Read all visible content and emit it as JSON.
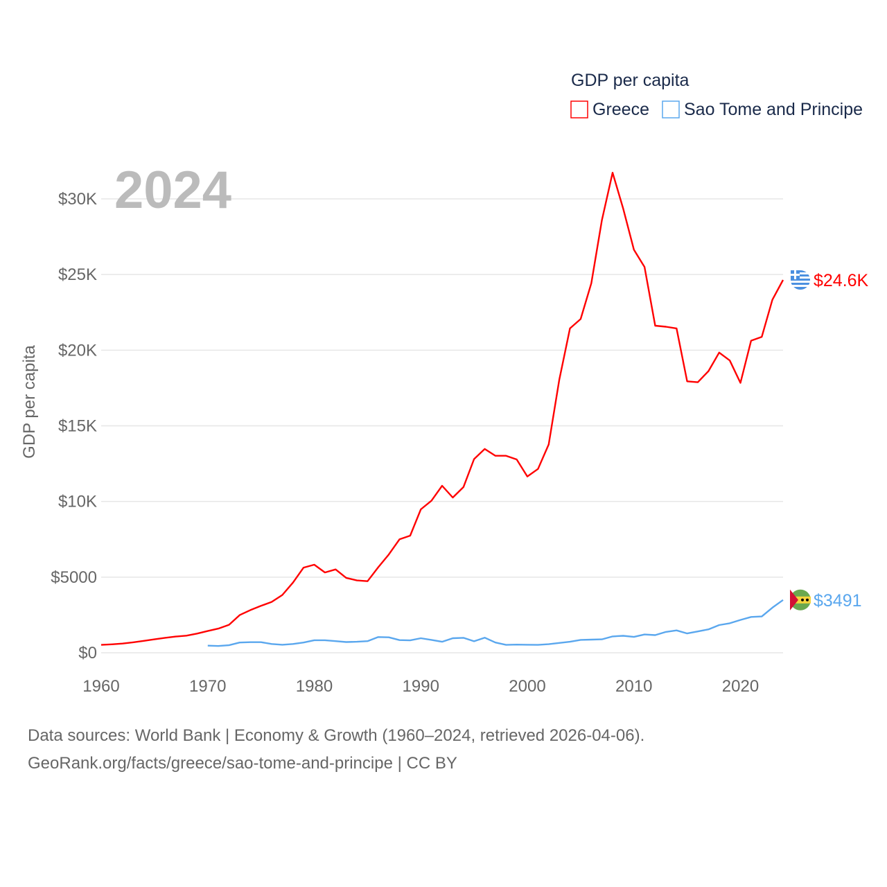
{
  "chart_data": {
    "type": "line",
    "title": "GDP per capita",
    "ylabel": "GDP per capita",
    "xlabel": "",
    "year_label": "2024",
    "xlim": [
      1960,
      2024
    ],
    "ylim": [
      0,
      30000
    ],
    "x_ticks": [
      1960,
      1970,
      1980,
      1990,
      2000,
      2010,
      2020
    ],
    "y_ticks": [
      0,
      5000,
      10000,
      15000,
      20000,
      25000,
      30000
    ],
    "y_tick_labels": [
      "$0",
      "$5000",
      "$10K",
      "$15K",
      "$20K",
      "$25K",
      "$30K"
    ],
    "grid": true,
    "legend_position": "top-right",
    "series": [
      {
        "name": "Greece",
        "color": "#ff0000",
        "end_label": "$24.6K",
        "flag": "greece-flag",
        "start_year": 1960,
        "values": [
          520,
          560,
          610,
          690,
          790,
          890,
          990,
          1070,
          1130,
          1270,
          1440,
          1600,
          1850,
          2490,
          2820,
          3100,
          3360,
          3820,
          4640,
          5630,
          5820,
          5310,
          5510,
          4950,
          4780,
          4730,
          5650,
          6500,
          7500,
          7740,
          9480,
          10050,
          11040,
          10260,
          10950,
          12800,
          13470,
          13020,
          13020,
          12780,
          11650,
          12150,
          13770,
          18050,
          21440,
          22060,
          24420,
          28600,
          31730,
          29340,
          26640,
          25500,
          21620,
          21550,
          21440,
          17940,
          17880,
          18620,
          19840,
          19320,
          17840,
          20630,
          20880,
          23330,
          24640
        ]
      },
      {
        "name": "Sao Tome and Principe",
        "color": "#5aa7ee",
        "end_label": "$3491",
        "flag": "sao-tome-flag",
        "start_year": 1970,
        "values": [
          470,
          450,
          500,
          680,
          700,
          700,
          580,
          530,
          580,
          680,
          830,
          830,
          770,
          710,
          730,
          770,
          1040,
          1020,
          840,
          820,
          960,
          850,
          730,
          960,
          990,
          760,
          1000,
          680,
          520,
          540,
          530,
          520,
          570,
          650,
          730,
          850,
          870,
          890,
          1080,
          1120,
          1050,
          1210,
          1170,
          1380,
          1480,
          1280,
          1410,
          1550,
          1830,
          1950,
          2170,
          2370,
          2400,
          2980,
          3491
        ]
      }
    ]
  },
  "footer": {
    "line1": "Data sources: World Bank | Economy & Growth (1960–2024, retrieved 2026-04-06).",
    "line2": "GeoRank.org/facts/greece/sao-tome-and-principe | CC BY"
  }
}
